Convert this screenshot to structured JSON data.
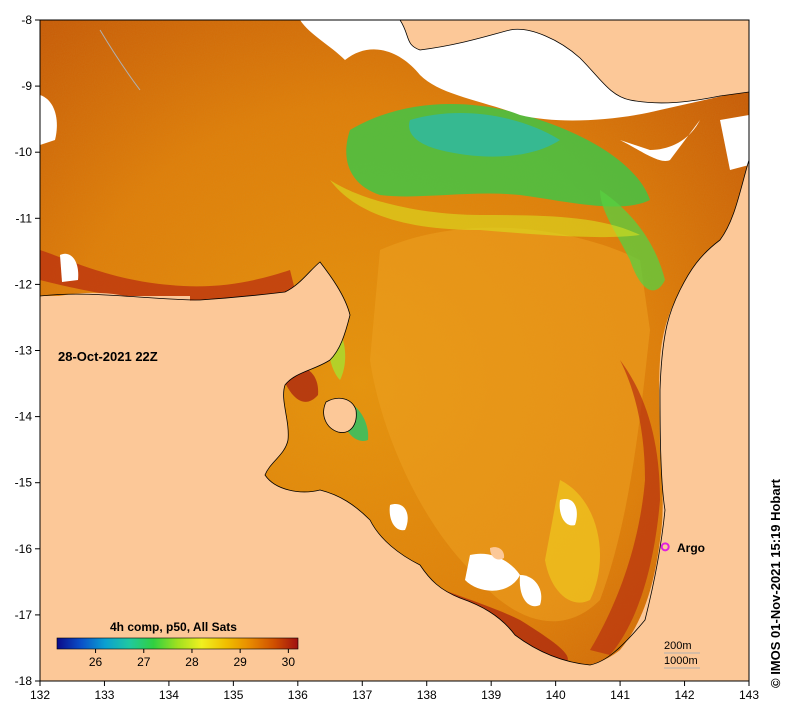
{
  "map": {
    "x_axis": {
      "min": 132,
      "max": 143,
      "ticks": [
        "132",
        "133",
        "134",
        "135",
        "136",
        "137",
        "138",
        "139",
        "140",
        "141",
        "142",
        "143"
      ]
    },
    "y_axis": {
      "min": -18,
      "max": -8,
      "ticks": [
        "-8",
        "-9",
        "-10",
        "-11",
        "-12",
        "-13",
        "-14",
        "-15",
        "-16",
        "-17",
        "-18"
      ]
    },
    "timestamp": "28-Oct-2021 22Z",
    "argo": {
      "label": "Argo",
      "lon": 141.7,
      "lat": -15.97,
      "color": "#e020e0"
    },
    "isobaths": {
      "line1": "200m",
      "line2": "1000m"
    },
    "colorbar": {
      "title": "4h comp, p50, All Sats",
      "min": 25.2,
      "max": 30.2,
      "ticks": [
        "26",
        "27",
        "28",
        "29",
        "30"
      ],
      "colors": [
        "#0a0a8a",
        "#0a50c8",
        "#0aa0d0",
        "#20c8a0",
        "#30d040",
        "#a0e020",
        "#f0f020",
        "#f0c000",
        "#e88a00",
        "#d05000",
        "#a01010"
      ]
    },
    "credit": "© IMOS 01-Nov-2021 15:19 Hobart",
    "colors": {
      "land": "#fcc898",
      "no_data": "#ffffff",
      "frame": "#000000"
    }
  }
}
